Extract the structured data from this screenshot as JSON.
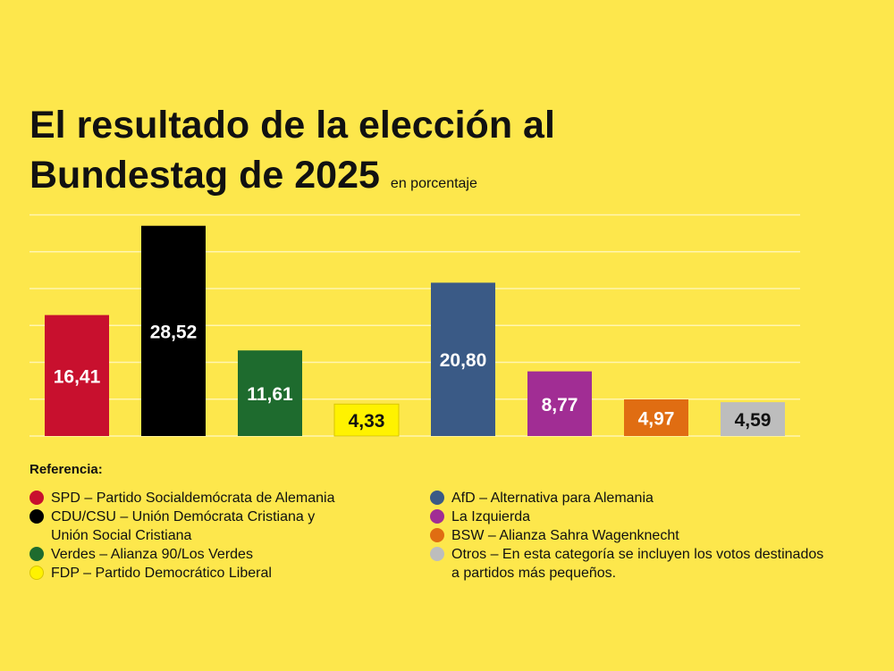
{
  "title": {
    "line1": "El resultado de la elección al",
    "line2": "Bundestag de 2025",
    "subtitle": "en porcentaje"
  },
  "chart_data": {
    "type": "bar",
    "title": "El resultado de la elección al Bundestag de 2025",
    "ylabel": "en porcentaje",
    "xlabel": "",
    "ylim": [
      0,
      30
    ],
    "grid": true,
    "categories": [
      "SPD",
      "CDU/CSU",
      "Verdes",
      "FDP",
      "AfD",
      "La Izquierda",
      "BSW",
      "Otros"
    ],
    "values": [
      16.41,
      28.52,
      11.61,
      4.33,
      20.8,
      8.77,
      4.97,
      4.59
    ],
    "value_labels": [
      "16,41",
      "28,52",
      "11,61",
      "4,33",
      "20,80",
      "8,77",
      "4,97",
      "4,59"
    ],
    "colors": [
      "#c8102e",
      "#000000",
      "#1e6b2e",
      "#fff200",
      "#3a5a86",
      "#a12d94",
      "#e06d12",
      "#bdbdbd"
    ],
    "label_colors": [
      "#ffffff",
      "#ffffff",
      "#ffffff",
      "#111111",
      "#ffffff",
      "#ffffff",
      "#ffffff",
      "#111111"
    ]
  },
  "legend": {
    "title": "Referencia:",
    "left": [
      {
        "label": "SPD – Partido Socialdemócrata de Alemania",
        "color": "#c8102e"
      },
      {
        "label": "CDU/CSU – Unión Demócrata Cristiana y\n            Unión Social Cristiana",
        "color": "#000000"
      },
      {
        "label": "Verdes – Alianza 90/Los Verdes",
        "color": "#1e6b2e"
      },
      {
        "label": "FDP – Partido Democrático Liberal",
        "color": "#fff200"
      }
    ],
    "right": [
      {
        "label": "AfD – Alternativa para Alemania",
        "color": "#3a5a86"
      },
      {
        "label": "La Izquierda",
        "color": "#a12d94"
      },
      {
        "label": "BSW – Alianza Sahra Wagenknecht",
        "color": "#e06d12"
      },
      {
        "label": "Otros – En esta categoría se incluyen los votos destinados\na partidos más pequeños.",
        "color": "#bdbdbd"
      }
    ]
  }
}
